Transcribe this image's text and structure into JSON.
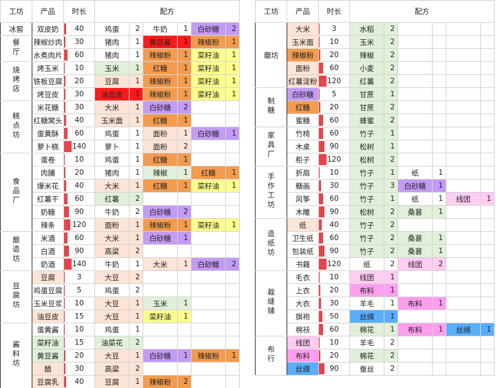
{
  "left": {
    "headers": [
      "工坊",
      "产品",
      "时长",
      "配方"
    ],
    "groups": [
      {
        "name": "冰窖",
        "vertical": false,
        "rows": [
          {
            "product": "双皮奶",
            "color": "#ffffff",
            "time": 40,
            "recipe": [
              [
                "鸡蛋",
                2,
                "#ffffff"
              ],
              [
                "牛奶",
                1,
                "#ffffff"
              ],
              [
                "白砂糖",
                2,
                "#c39bf5"
              ]
            ]
          }
        ]
      },
      {
        "name": "餐厅",
        "vertical": true,
        "rows": [
          {
            "product": "辣椒炒肉",
            "color": "#ffffff",
            "time": 30,
            "recipe": [
              [
                "猪肉",
                1,
                "#ffffff"
              ],
              [
                "黄豆酱",
                1,
                "#ff1a1a"
              ],
              [
                "辣椒粉",
                1,
                "#f39c4e"
              ]
            ]
          },
          {
            "product": "水煮肉片",
            "color": "#ffffff",
            "time": 60,
            "recipe": [
              [
                "猪肉",
                1,
                "#ffffff"
              ],
              [
                "辣椒粉",
                1,
                "#f39c4e"
              ],
              [
                "菜籽油",
                1,
                "#ffff8c"
              ]
            ]
          }
        ]
      },
      {
        "name": "烧烤店",
        "vertical": true,
        "rows": [
          {
            "product": "烤玉米",
            "color": "#ffffff",
            "time": 10,
            "recipe": [
              [
                "玉米",
                1,
                "#e2efda"
              ],
              [
                "红糖",
                1,
                "#f39c4e"
              ],
              [
                "菜籽油",
                1,
                "#ffff8c"
              ]
            ]
          },
          {
            "product": "铁板豆腐",
            "color": "#ffffff",
            "time": 20,
            "recipe": [
              [
                "豆腐",
                1,
                "#fce4d6"
              ],
              [
                "辣椒粉",
                1,
                "#f39c4e"
              ],
              [
                "菜籽油",
                1,
                "#ffff8c"
              ]
            ]
          },
          {
            "product": "烤豆皮",
            "color": "#ffffff",
            "time": 30,
            "recipe": [
              [
                "油豆皮",
                1,
                "#ff1a1a"
              ],
              [
                "辣椒粉",
                1,
                "#f39c4e"
              ],
              [
                "菜籽油",
                1,
                "#ffff8c"
              ]
            ]
          }
        ]
      },
      {
        "name": "糕点坊",
        "vertical": true,
        "rows": [
          {
            "product": "米花糖",
            "color": "#ffffff",
            "time": 30,
            "recipe": [
              [
                "大米",
                1,
                "#fce4d6"
              ],
              [
                "白砂糖",
                2,
                "#c39bf5"
              ]
            ]
          },
          {
            "product": "红糖窝头",
            "color": "#ffffff",
            "time": 40,
            "recipe": [
              [
                "玉米面",
                1,
                "#fce4d6"
              ],
              [
                "红糖",
                1,
                "#f39c4e"
              ]
            ]
          },
          {
            "product": "蛋黄酥",
            "color": "#ffffff",
            "time": 60,
            "recipe": [
              [
                "鸡蛋",
                1,
                "#ffffff"
              ],
              [
                "面粉",
                1,
                "#fce4d6"
              ],
              [
                "白砂糖",
                1,
                "#c39bf5"
              ]
            ]
          },
          {
            "product": "萝卜糕",
            "color": "#ffffff",
            "time": 140,
            "recipe": [
              [
                "萝卜",
                1,
                "#ffffff"
              ],
              [
                "面粉",
                2,
                "#fce4d6"
              ]
            ]
          }
        ]
      },
      {
        "name": "食品厂",
        "vertical": true,
        "rows": [
          {
            "product": "蛋卷",
            "color": "#ffffff",
            "time": 10,
            "recipe": [
              [
                "鸡蛋",
                1,
                "#ffffff"
              ],
              [
                "红糖",
                1,
                "#f39c4e"
              ]
            ]
          },
          {
            "product": "肉脯",
            "color": "#ffffff",
            "time": 20,
            "recipe": [
              [
                "猪肉",
                1,
                "#ffffff"
              ],
              [
                "辣椒",
                1,
                "#e2efda"
              ],
              [
                "红糖",
                1,
                "#f39c4e"
              ]
            ]
          },
          {
            "product": "爆米花",
            "color": "#ffffff",
            "time": 40,
            "recipe": [
              [
                "大米",
                1,
                "#fce4d6"
              ],
              [
                "红糖",
                1,
                "#f39c4e"
              ],
              [
                "菜籽油",
                1,
                "#ffff8c"
              ]
            ]
          },
          {
            "product": "红薯干",
            "color": "#ffffff",
            "time": 60,
            "recipe": [
              [
                "红薯",
                2,
                "#e2efda"
              ]
            ]
          },
          {
            "product": "奶糖",
            "color": "#ffffff",
            "time": 90,
            "recipe": [
              [
                "牛奶",
                2,
                "#ffffff"
              ],
              [
                "白砂糖",
                2,
                "#c39bf5"
              ]
            ]
          },
          {
            "product": "辣条",
            "color": "#ffffff",
            "time": 120,
            "recipe": [
              [
                "面粉",
                1,
                "#fce4d6"
              ],
              [
                "辣椒粉",
                1,
                "#f39c4e"
              ],
              [
                "菜籽油",
                1,
                "#ffff8c"
              ]
            ]
          }
        ]
      },
      {
        "name": "酿造坊",
        "vertical": true,
        "rows": [
          {
            "product": "米酒",
            "color": "#ffffff",
            "time": 60,
            "recipe": [
              [
                "大米",
                1,
                "#fce4d6"
              ],
              [
                "白砂糖",
                1,
                "#c39bf5"
              ]
            ]
          },
          {
            "product": "白酒",
            "color": "#ffffff",
            "time": 90,
            "recipe": [
              [
                "高粱",
                2,
                "#fce4d6"
              ]
            ]
          },
          {
            "product": "奶酒",
            "color": "#ffffff",
            "time": 140,
            "recipe": [
              [
                "牛奶",
                1,
                "#ffffff"
              ],
              [
                "大米",
                1,
                "#fce4d6"
              ],
              [
                "白砂糖",
                2,
                "#c39bf5"
              ]
            ]
          }
        ]
      },
      {
        "name": "豆腐坊",
        "vertical": true,
        "rows": [
          {
            "product": "豆腐",
            "color": "#fce4d6",
            "time": 3,
            "recipe": [
              [
                "大豆",
                2,
                "#fce4d6"
              ]
            ]
          },
          {
            "product": "鸡蛋豆腐",
            "color": "#ffffff",
            "time": 5,
            "recipe": [
              [
                "鸡蛋",
                2,
                "#ffffff"
              ]
            ]
          },
          {
            "product": "玉米豆浆",
            "color": "#ffffff",
            "time": 10,
            "recipe": [
              [
                "大豆",
                1,
                "#fce4d6"
              ],
              [
                "玉米",
                1,
                "#e2efda"
              ]
            ]
          },
          {
            "product": "油豆皮",
            "color": "#fce4d6",
            "time": 15,
            "recipe": [
              [
                "大豆",
                1,
                "#fce4d6"
              ],
              [
                "菜籽油",
                1,
                "#ffff8c"
              ]
            ]
          }
        ]
      },
      {
        "name": "酱料坊",
        "vertical": true,
        "rows": [
          {
            "product": "蛋黄酱",
            "color": "#ffffff",
            "time": 10,
            "recipe": [
              [
                "鸡蛋",
                1,
                "#ffffff"
              ]
            ]
          },
          {
            "product": "菜籽油",
            "color": "#e2efda",
            "time": 15,
            "recipe": [
              [
                "油菜花",
                2,
                "#e2efda"
              ]
            ]
          },
          {
            "product": "黄豆酱",
            "color": "#e2efda",
            "time": 20,
            "recipe": [
              [
                "大豆",
                1,
                "#fce4d6"
              ],
              [
                "白砂糖",
                1,
                "#c39bf5"
              ],
              [
                "辣椒粉",
                1,
                "#f39c4e"
              ]
            ]
          },
          {
            "product": "醋",
            "color": "#fce4d6",
            "time": 30,
            "recipe": [
              [
                "高粱",
                2,
                "#fce4d6"
              ]
            ]
          },
          {
            "product": "豆腐乳",
            "color": "#fce4d6",
            "time": 40,
            "recipe": [
              [
                "豆腐",
                1,
                "#fce4d6"
              ],
              [
                "辣椒粉",
                2,
                "#f39c4e"
              ]
            ]
          }
        ]
      }
    ]
  },
  "right": {
    "headers": [
      "工坊",
      "产品",
      "时长",
      "配方"
    ],
    "groups": [
      {
        "name": "磨坊",
        "vertical": false,
        "rows": [
          {
            "product": "大米",
            "color": "#fce4d6",
            "time": 3,
            "recipe": [
              [
                "水稻",
                2,
                "#e2efda"
              ]
            ]
          },
          {
            "product": "玉米面",
            "color": "#fce4d6",
            "time": 10,
            "recipe": [
              [
                "玉米",
                2,
                "#e2efda"
              ]
            ]
          },
          {
            "product": "辣椒粉",
            "color": "#f39c4e",
            "time": 20,
            "recipe": [
              [
                "辣椒",
                2,
                "#e2efda"
              ]
            ]
          },
          {
            "product": "面粉",
            "color": "#fce4d6",
            "time": 60,
            "recipe": [
              [
                "小麦",
                2,
                "#e2efda"
              ]
            ]
          },
          {
            "product": "红薯淀粉",
            "color": "#fce4d6",
            "time": 120,
            "recipe": [
              [
                "红薯",
                2,
                "#e2efda"
              ]
            ]
          }
        ]
      },
      {
        "name": "制糖",
        "vertical": true,
        "rows": [
          {
            "product": "白砂糖",
            "color": "#c39bf5",
            "time": 5,
            "recipe": [
              [
                "甘蔗",
                1,
                "#e2efda"
              ]
            ]
          },
          {
            "product": "红糖",
            "color": "#f39c4e",
            "time": 20,
            "recipe": [
              [
                "甘蔗",
                2,
                "#e2efda"
              ]
            ]
          },
          {
            "product": "蜜糖",
            "color": "#ffffff",
            "time": 60,
            "recipe": [
              [
                "蜂蜜",
                2,
                "#e2efda"
              ]
            ]
          }
        ]
      },
      {
        "name": "家具厂",
        "vertical": true,
        "rows": [
          {
            "product": "竹椅",
            "color": "#ffffff",
            "time": 60,
            "recipe": [
              [
                "竹子",
                1,
                "#e2efda"
              ]
            ]
          },
          {
            "product": "木桌",
            "color": "#ffffff",
            "time": 90,
            "recipe": [
              [
                "松树",
                1,
                "#e2efda"
              ]
            ]
          },
          {
            "product": "柜子",
            "color": "#ffffff",
            "time": 120,
            "recipe": [
              [
                "松树",
                2,
                "#e2efda"
              ]
            ]
          }
        ]
      },
      {
        "name": "手作工坊",
        "vertical": true,
        "rows": [
          {
            "product": "折扇",
            "color": "#ffffff",
            "time": 10,
            "recipe": [
              [
                "竹子",
                1,
                "#e2efda"
              ],
              [
                "纸",
                1,
                "#ffffff"
              ]
            ]
          },
          {
            "product": "糖画",
            "color": "#ffffff",
            "time": 30,
            "recipe": [
              [
                "竹子",
                3,
                "#e2efda"
              ],
              [
                "白砂糖",
                1,
                "#c39bf5"
              ]
            ]
          },
          {
            "product": "风筝",
            "color": "#ffffff",
            "time": 60,
            "recipe": [
              [
                "竹子",
                1,
                "#e2efda"
              ],
              [
                "纸",
                1,
                "#ffffff"
              ],
              [
                "线团",
                1,
                "#ffccf2"
              ]
            ]
          },
          {
            "product": "木雕",
            "color": "#ffffff",
            "time": 90,
            "recipe": [
              [
                "松树",
                2,
                "#e2efda"
              ],
              [
                "桑葚",
                1,
                "#e2efda"
              ]
            ]
          }
        ]
      },
      {
        "name": "造纸坊",
        "vertical": true,
        "rows": [
          {
            "product": "纸",
            "color": "#fce4d6",
            "time": 40,
            "recipe": [
              [
                "竹子",
                2,
                "#e2efda"
              ]
            ]
          },
          {
            "product": "卫生纸",
            "color": "#ffffff",
            "time": 60,
            "recipe": [
              [
                "竹子",
                2,
                "#e2efda"
              ],
              [
                "桑葚",
                1,
                "#e2efda"
              ]
            ]
          },
          {
            "product": "包装纸",
            "color": "#ffffff",
            "time": 90,
            "recipe": [
              [
                "竹子",
                2,
                "#e2efda"
              ],
              [
                "桑葚",
                1,
                "#e2efda"
              ]
            ]
          },
          {
            "product": "书籍",
            "color": "#ffffff",
            "time": 120,
            "recipe": [
              [
                "纸",
                2,
                "#ffffff"
              ],
              [
                "线团",
                2,
                "#ffccf2"
              ]
            ]
          }
        ]
      },
      {
        "name": "裁缝铺",
        "vertical": true,
        "rows": [
          {
            "product": "毛衣",
            "color": "#ffffff",
            "time": 10,
            "recipe": [
              [
                "线团",
                1,
                "#ffccf2"
              ]
            ]
          },
          {
            "product": "上衣",
            "color": "#ffffff",
            "time": 20,
            "recipe": [
              [
                "布料",
                1,
                "#ff9ef0"
              ]
            ]
          },
          {
            "product": "大衣",
            "color": "#ffffff",
            "time": 30,
            "recipe": [
              [
                "羊毛",
                1,
                "#ffffff"
              ],
              [
                "布料",
                1,
                "#ff9ef0"
              ]
            ]
          },
          {
            "product": "旗袍",
            "color": "#ffffff",
            "time": 50,
            "recipe": [
              [
                "丝绸",
                1,
                "#5aaefc"
              ]
            ]
          },
          {
            "product": "棉袄",
            "color": "#ffffff",
            "time": 60,
            "recipe": [
              [
                "棉花",
                1,
                "#e2efda"
              ],
              [
                "布料",
                1,
                "#ff9ef0"
              ],
              [
                "丝绸",
                1,
                "#5aaefc"
              ]
            ]
          }
        ]
      },
      {
        "name": "布行",
        "vertical": true,
        "rows": [
          {
            "product": "线团",
            "color": "#ffccf2",
            "time": 10,
            "recipe": [
              [
                "羊毛",
                2,
                "#ffffff"
              ]
            ]
          },
          {
            "product": "布料",
            "color": "#ff9ef0",
            "time": 20,
            "recipe": [
              [
                "棉花",
                2,
                "#e2efda"
              ]
            ]
          },
          {
            "product": "丝绸",
            "color": "#5aaefc",
            "time": 90,
            "recipe": [
              [
                "蚕丝",
                2,
                "#ffffff"
              ]
            ]
          }
        ]
      }
    ]
  }
}
